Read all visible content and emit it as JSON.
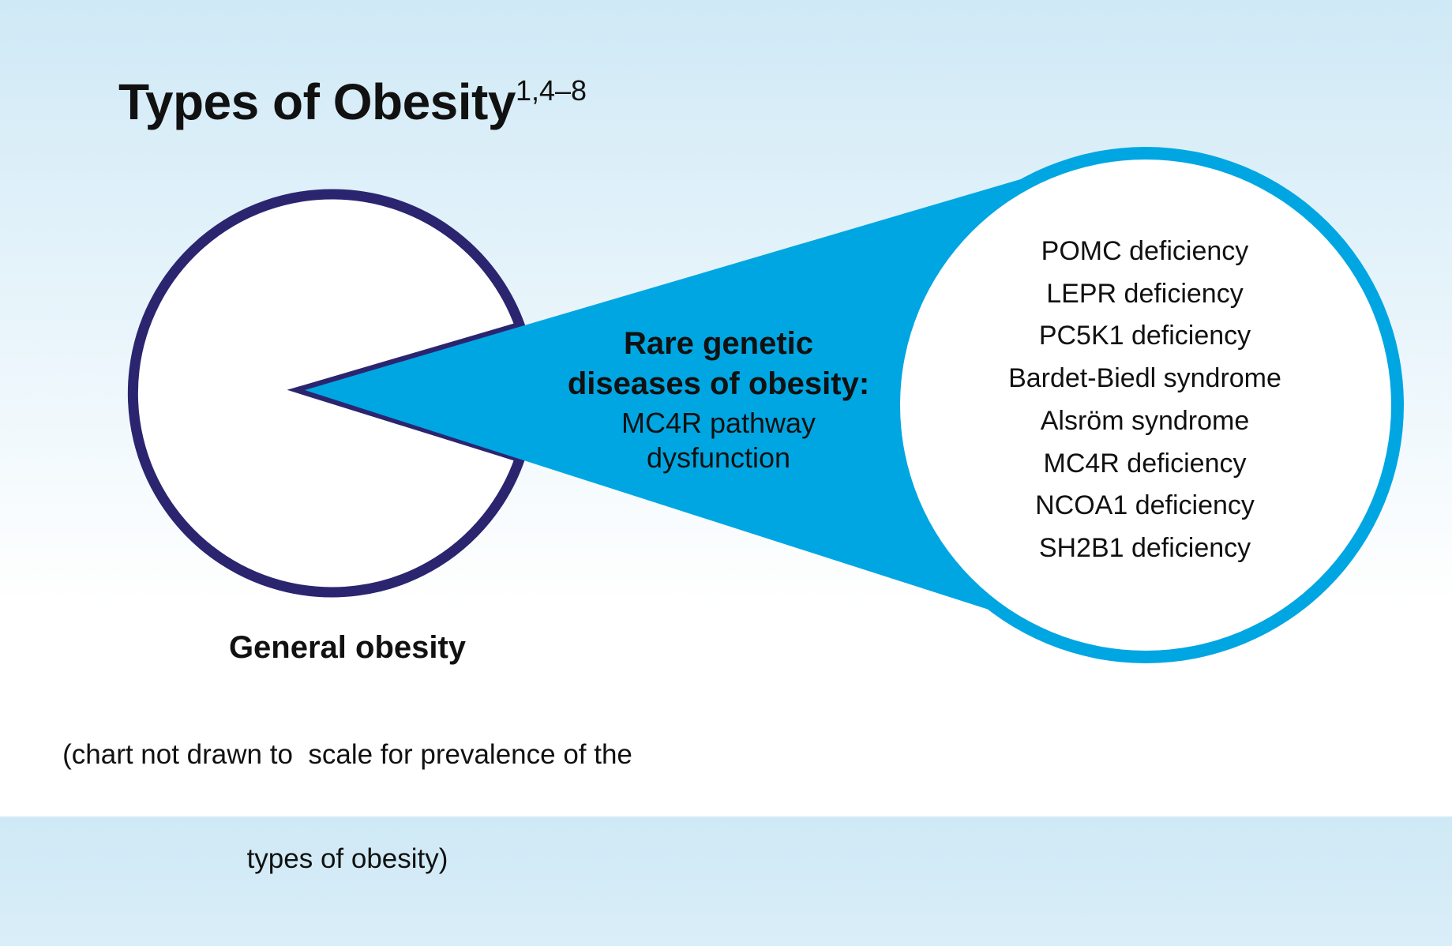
{
  "title": {
    "text": "Types of Obesity",
    "refs": "1,4–8"
  },
  "rare_group": {
    "title_line1": "Rare genetic",
    "title_line2": "diseases of obesity:",
    "subtitle_line1": "MC4R pathway",
    "subtitle_line2": "dysfunction"
  },
  "conditions": [
    "POMC deficiency",
    "LEPR deficiency",
    "PC5K1 deficiency",
    "Bardet-Biedl syndrome",
    "Alsröm syndrome",
    "MC4R deficiency",
    " NCOA1 deficiency",
    "SH2B1 deficiency"
  ],
  "general_group": {
    "title": "General obesity",
    "note_line1": "(chart not drawn to  scale for prevalence of the",
    "note_line2": "types of obesity)"
  },
  "colors": {
    "general_outline": "#2b2570",
    "rare_fill": "#00a6e2",
    "circle_fill": "#ffffff",
    "background_top": "#cfe9f6",
    "background_bottom": "#ffffff"
  }
}
